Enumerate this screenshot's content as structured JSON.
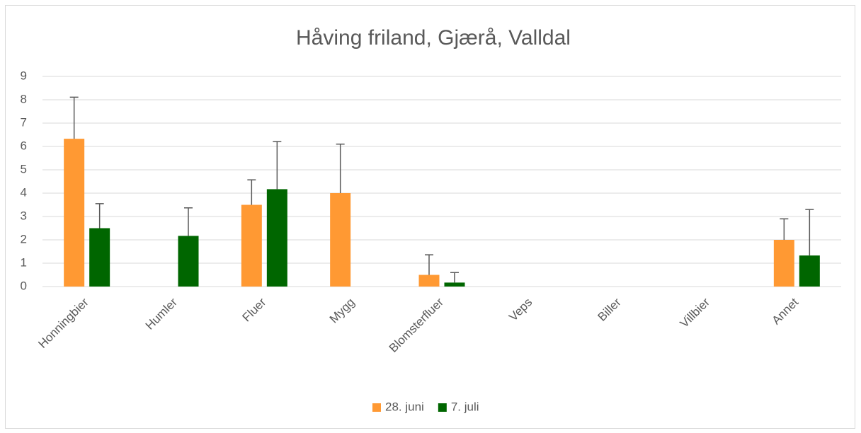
{
  "chart_data": {
    "type": "bar",
    "title": "Håving friland, Gjærå, Valldal",
    "categories": [
      "Honningbier",
      "Humler",
      "Fluer",
      "Mygg",
      "Blomsterfluer",
      "Veps",
      "Biller",
      "Villbier",
      "Annet"
    ],
    "series": [
      {
        "name": "28. juni",
        "color": "#ff9933",
        "values": [
          6.33,
          0,
          3.5,
          4,
          0.5,
          0,
          0,
          0,
          2
        ],
        "errors": [
          1.78,
          null,
          1.07,
          2.1,
          0.86,
          null,
          null,
          null,
          0.9
        ]
      },
      {
        "name": "7. juli",
        "color": "#006600",
        "values": [
          2.5,
          2.17,
          4.17,
          0,
          0.17,
          0,
          0,
          0,
          1.33
        ],
        "errors": [
          1.05,
          1.2,
          2.04,
          null,
          0.43,
          null,
          null,
          null,
          1.97
        ]
      }
    ],
    "ylim": [
      0,
      9
    ],
    "yticks": [
      0,
      1,
      2,
      3,
      4,
      5,
      6,
      7,
      8,
      9
    ],
    "grid": true,
    "legend": "bottom"
  }
}
